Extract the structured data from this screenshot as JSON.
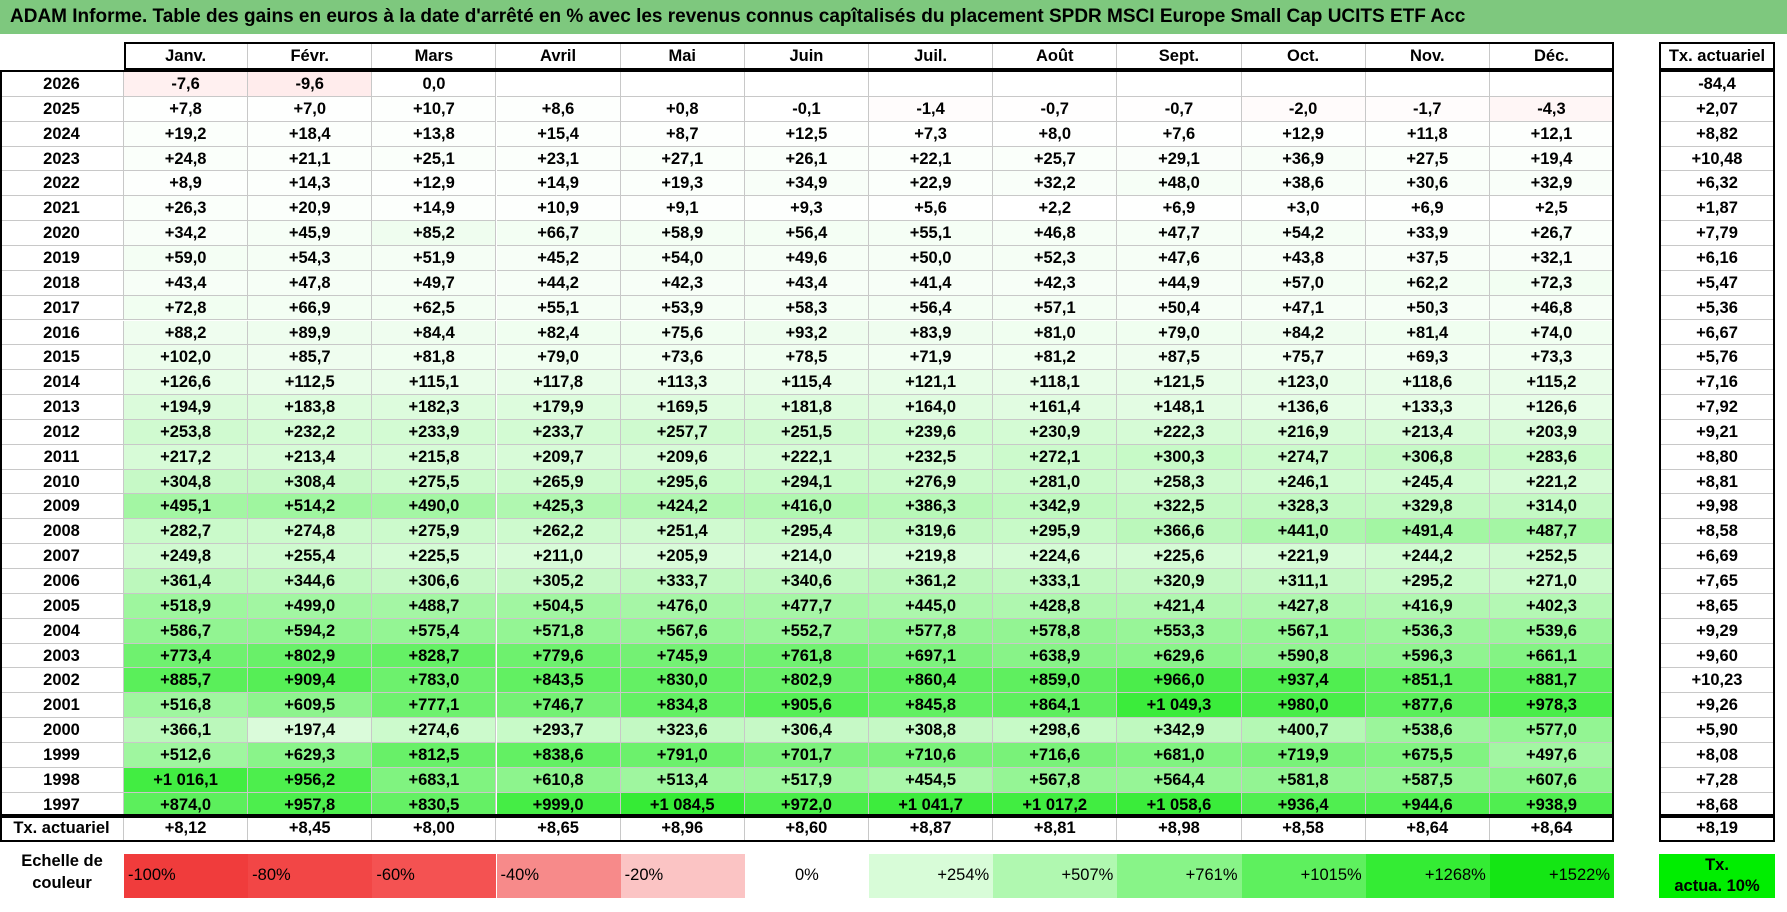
{
  "title": "ADAM Informe. Table des gains en euros à la date d'arrêté en % avec les revenus connus capîtalisés du placement SPDR MSCI Europe Small Cap UCITS ETF Acc",
  "months": [
    "Janv.",
    "Févr.",
    "Mars",
    "Avril",
    "Mai",
    "Juin",
    "Juil.",
    "Août",
    "Sept.",
    "Oct.",
    "Nov.",
    "Déc."
  ],
  "tx_header": "Tx. actuariel",
  "rows": [
    {
      "year": "2026",
      "cells": [
        "-7,6",
        "-9,6",
        "0,0",
        "",
        "",
        "",
        "",
        "",
        "",
        "",
        "",
        ""
      ],
      "tx": "-84,4"
    },
    {
      "year": "2025",
      "cells": [
        "+7,8",
        "+7,0",
        "+10,7",
        "+8,6",
        "+0,8",
        "-0,1",
        "-1,4",
        "-0,7",
        "-0,7",
        "-2,0",
        "-1,7",
        "-4,3"
      ],
      "tx": "+2,07"
    },
    {
      "year": "2024",
      "cells": [
        "+19,2",
        "+18,4",
        "+13,8",
        "+15,4",
        "+8,7",
        "+12,5",
        "+7,3",
        "+8,0",
        "+7,6",
        "+12,9",
        "+11,8",
        "+12,1"
      ],
      "tx": "+8,82"
    },
    {
      "year": "2023",
      "cells": [
        "+24,8",
        "+21,1",
        "+25,1",
        "+23,1",
        "+27,1",
        "+26,1",
        "+22,1",
        "+25,7",
        "+29,1",
        "+36,9",
        "+27,5",
        "+19,4"
      ],
      "tx": "+10,48"
    },
    {
      "year": "2022",
      "cells": [
        "+8,9",
        "+14,3",
        "+12,9",
        "+14,9",
        "+19,3",
        "+34,9",
        "+22,9",
        "+32,2",
        "+48,0",
        "+38,6",
        "+30,6",
        "+32,9"
      ],
      "tx": "+6,32"
    },
    {
      "year": "2021",
      "cells": [
        "+26,3",
        "+20,9",
        "+14,9",
        "+10,9",
        "+9,1",
        "+9,3",
        "+5,6",
        "+2,2",
        "+6,9",
        "+3,0",
        "+6,9",
        "+2,5"
      ],
      "tx": "+1,87"
    },
    {
      "year": "2020",
      "cells": [
        "+34,2",
        "+45,9",
        "+85,2",
        "+66,7",
        "+58,9",
        "+56,4",
        "+55,1",
        "+46,8",
        "+47,7",
        "+54,2",
        "+33,9",
        "+26,7"
      ],
      "tx": "+7,79"
    },
    {
      "year": "2019",
      "cells": [
        "+59,0",
        "+54,3",
        "+51,9",
        "+45,2",
        "+54,0",
        "+49,6",
        "+50,0",
        "+52,3",
        "+47,6",
        "+43,8",
        "+37,5",
        "+32,1"
      ],
      "tx": "+6,16"
    },
    {
      "year": "2018",
      "cells": [
        "+43,4",
        "+47,8",
        "+49,7",
        "+44,2",
        "+42,3",
        "+43,4",
        "+41,4",
        "+42,3",
        "+44,9",
        "+57,0",
        "+62,2",
        "+72,3"
      ],
      "tx": "+5,47"
    },
    {
      "year": "2017",
      "cells": [
        "+72,8",
        "+66,9",
        "+62,5",
        "+55,1",
        "+53,9",
        "+58,3",
        "+56,4",
        "+57,1",
        "+50,4",
        "+47,1",
        "+50,3",
        "+46,8"
      ],
      "tx": "+5,36"
    },
    {
      "year": "2016",
      "cells": [
        "+88,2",
        "+89,9",
        "+84,4",
        "+82,4",
        "+75,6",
        "+93,2",
        "+83,9",
        "+81,0",
        "+79,0",
        "+84,2",
        "+81,4",
        "+74,0"
      ],
      "tx": "+6,67"
    },
    {
      "year": "2015",
      "cells": [
        "+102,0",
        "+85,7",
        "+81,8",
        "+79,0",
        "+73,6",
        "+78,5",
        "+71,9",
        "+81,2",
        "+87,5",
        "+75,7",
        "+69,3",
        "+73,3"
      ],
      "tx": "+5,76"
    },
    {
      "year": "2014",
      "cells": [
        "+126,6",
        "+112,5",
        "+115,1",
        "+117,8",
        "+113,3",
        "+115,4",
        "+121,1",
        "+118,1",
        "+121,5",
        "+123,0",
        "+118,6",
        "+115,2"
      ],
      "tx": "+7,16"
    },
    {
      "year": "2013",
      "cells": [
        "+194,9",
        "+183,8",
        "+182,3",
        "+179,9",
        "+169,5",
        "+181,8",
        "+164,0",
        "+161,4",
        "+148,1",
        "+136,6",
        "+133,3",
        "+126,6"
      ],
      "tx": "+7,92"
    },
    {
      "year": "2012",
      "cells": [
        "+253,8",
        "+232,2",
        "+233,9",
        "+233,7",
        "+257,7",
        "+251,5",
        "+239,6",
        "+230,9",
        "+222,3",
        "+216,9",
        "+213,4",
        "+203,9"
      ],
      "tx": "+9,21"
    },
    {
      "year": "2011",
      "cells": [
        "+217,2",
        "+213,4",
        "+215,8",
        "+209,7",
        "+209,6",
        "+222,1",
        "+232,5",
        "+272,1",
        "+300,3",
        "+274,7",
        "+306,8",
        "+283,6"
      ],
      "tx": "+8,80"
    },
    {
      "year": "2010",
      "cells": [
        "+304,8",
        "+308,4",
        "+275,5",
        "+265,9",
        "+295,6",
        "+294,1",
        "+276,9",
        "+281,0",
        "+258,3",
        "+246,1",
        "+245,4",
        "+221,2"
      ],
      "tx": "+8,81"
    },
    {
      "year": "2009",
      "cells": [
        "+495,1",
        "+514,2",
        "+490,0",
        "+425,3",
        "+424,2",
        "+416,0",
        "+386,3",
        "+342,9",
        "+322,5",
        "+328,3",
        "+329,8",
        "+314,0"
      ],
      "tx": "+9,98"
    },
    {
      "year": "2008",
      "cells": [
        "+282,7",
        "+274,8",
        "+275,9",
        "+262,2",
        "+251,4",
        "+295,4",
        "+319,6",
        "+295,9",
        "+366,6",
        "+441,0",
        "+491,4",
        "+487,7"
      ],
      "tx": "+8,58"
    },
    {
      "year": "2007",
      "cells": [
        "+249,8",
        "+255,4",
        "+225,5",
        "+211,0",
        "+205,9",
        "+214,0",
        "+219,8",
        "+224,6",
        "+225,6",
        "+221,9",
        "+244,2",
        "+252,5"
      ],
      "tx": "+6,69"
    },
    {
      "year": "2006",
      "cells": [
        "+361,4",
        "+344,6",
        "+306,6",
        "+305,2",
        "+333,7",
        "+340,6",
        "+361,2",
        "+333,1",
        "+320,9",
        "+311,1",
        "+295,2",
        "+271,0"
      ],
      "tx": "+7,65"
    },
    {
      "year": "2005",
      "cells": [
        "+518,9",
        "+499,0",
        "+488,7",
        "+504,5",
        "+476,0",
        "+477,7",
        "+445,0",
        "+428,8",
        "+421,4",
        "+427,8",
        "+416,9",
        "+402,3"
      ],
      "tx": "+8,65"
    },
    {
      "year": "2004",
      "cells": [
        "+586,7",
        "+594,2",
        "+575,4",
        "+571,8",
        "+567,6",
        "+552,7",
        "+577,8",
        "+578,8",
        "+553,3",
        "+567,1",
        "+536,3",
        "+539,6"
      ],
      "tx": "+9,29"
    },
    {
      "year": "2003",
      "cells": [
        "+773,4",
        "+802,9",
        "+828,7",
        "+779,6",
        "+745,9",
        "+761,8",
        "+697,1",
        "+638,9",
        "+629,6",
        "+590,8",
        "+596,3",
        "+661,1"
      ],
      "tx": "+9,60"
    },
    {
      "year": "2002",
      "cells": [
        "+885,7",
        "+909,4",
        "+783,0",
        "+843,5",
        "+830,0",
        "+802,9",
        "+860,4",
        "+859,0",
        "+966,0",
        "+937,4",
        "+851,1",
        "+881,7"
      ],
      "tx": "+10,23"
    },
    {
      "year": "2001",
      "cells": [
        "+516,8",
        "+609,5",
        "+777,1",
        "+746,7",
        "+834,8",
        "+905,6",
        "+845,8",
        "+864,1",
        "+1 049,3",
        "+980,0",
        "+877,6",
        "+978,3"
      ],
      "tx": "+9,26"
    },
    {
      "year": "2000",
      "cells": [
        "+366,1",
        "+197,4",
        "+274,6",
        "+293,7",
        "+323,6",
        "+306,4",
        "+308,8",
        "+298,6",
        "+342,9",
        "+400,7",
        "+538,6",
        "+577,0"
      ],
      "tx": "+5,90"
    },
    {
      "year": "1999",
      "cells": [
        "+512,6",
        "+629,3",
        "+812,5",
        "+838,6",
        "+791,0",
        "+701,7",
        "+710,6",
        "+716,6",
        "+681,0",
        "+719,9",
        "+675,5",
        "+497,6"
      ],
      "tx": "+8,08"
    },
    {
      "year": "1998",
      "cells": [
        "+1 016,1",
        "+956,2",
        "+683,1",
        "+610,8",
        "+513,4",
        "+517,9",
        "+454,5",
        "+567,8",
        "+564,4",
        "+581,8",
        "+587,5",
        "+607,6"
      ],
      "tx": "+7,28"
    },
    {
      "year": "1997",
      "cells": [
        "+874,0",
        "+957,8",
        "+830,5",
        "+999,0",
        "+1 084,5",
        "+972,0",
        "+1 041,7",
        "+1 017,2",
        "+1 058,6",
        "+936,4",
        "+944,6",
        "+938,9"
      ],
      "tx": "+8,68"
    }
  ],
  "footer": {
    "label": "Tx. actuariel",
    "cells": [
      "+8,12",
      "+8,45",
      "+8,00",
      "+8,65",
      "+8,96",
      "+8,60",
      "+8,87",
      "+8,81",
      "+8,98",
      "+8,58",
      "+8,64",
      "+8,64"
    ],
    "tx": "+8,19"
  },
  "scale": {
    "label_line1": "Echelle de",
    "label_line2": "couleur",
    "items": [
      {
        "label": "-100%",
        "color": "#f03c3c",
        "align": "left"
      },
      {
        "label": "-80%",
        "color": "#f24646",
        "align": "left"
      },
      {
        "label": "-60%",
        "color": "#f45252",
        "align": "left"
      },
      {
        "label": "-40%",
        "color": "#f78a8a",
        "align": "left"
      },
      {
        "label": "-20%",
        "color": "#fbc4c4",
        "align": "left"
      },
      {
        "label": "0%",
        "color": "#ffffff",
        "align": "center"
      },
      {
        "label": "+254%",
        "color": "#d8fcd8",
        "align": "right"
      },
      {
        "label": "+507%",
        "color": "#b0f8b0",
        "align": "right"
      },
      {
        "label": "+761%",
        "color": "#88f488",
        "align": "right"
      },
      {
        "label": "+1015%",
        "color": "#5ef05e",
        "align": "right"
      },
      {
        "label": "+1268%",
        "color": "#34ec34",
        "align": "right"
      },
      {
        "label": "+1522%",
        "color": "#14e614",
        "align": "right"
      }
    ],
    "tx_line1": "Tx.",
    "tx_line2": "actua. 10%",
    "tx_color": "#00ee00"
  }
}
